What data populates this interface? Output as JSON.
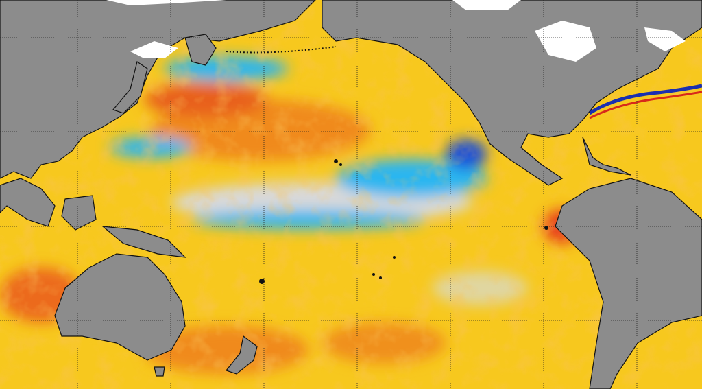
{
  "colors": {
    "ocean_base": "#f7c81e",
    "warm": "#f08a1c",
    "hot": "#e8401a",
    "neutral": "#d9d9d9",
    "cool": "#29b6f0",
    "cold": "#1a4fd8",
    "land": "#8c8c8c",
    "ice": "#ffffff",
    "coastline": "#111111",
    "grid": "#222222"
  },
  "grid": {
    "visible": true,
    "style": "dotted"
  }
}
